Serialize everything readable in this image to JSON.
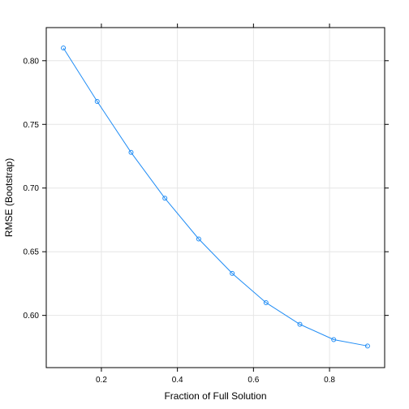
{
  "chart_data": {
    "type": "line",
    "xlabel": "Fraction of Full Solution",
    "ylabel": "RMSE (Bootstrap)",
    "xlim": [
      0.055,
      0.945
    ],
    "ylim": [
      0.559,
      0.826
    ],
    "xticks": [
      0.2,
      0.4,
      0.6,
      0.8
    ],
    "xtick_labels": [
      "0.2",
      "0.4",
      "0.6",
      "0.8"
    ],
    "yticks": [
      0.6,
      0.65,
      0.7,
      0.75,
      0.8
    ],
    "ytick_labels": [
      "0.60",
      "0.65",
      "0.70",
      "0.75",
      "0.80"
    ],
    "grid": true,
    "series": [
      {
        "x": [
          0.1,
          0.189,
          0.278,
          0.367,
          0.456,
          0.544,
          0.633,
          0.722,
          0.811,
          0.9
        ],
        "y": [
          0.81,
          0.768,
          0.728,
          0.692,
          0.66,
          0.633,
          0.61,
          0.593,
          0.581,
          0.576
        ],
        "color": "#1f8cf5"
      }
    ]
  }
}
